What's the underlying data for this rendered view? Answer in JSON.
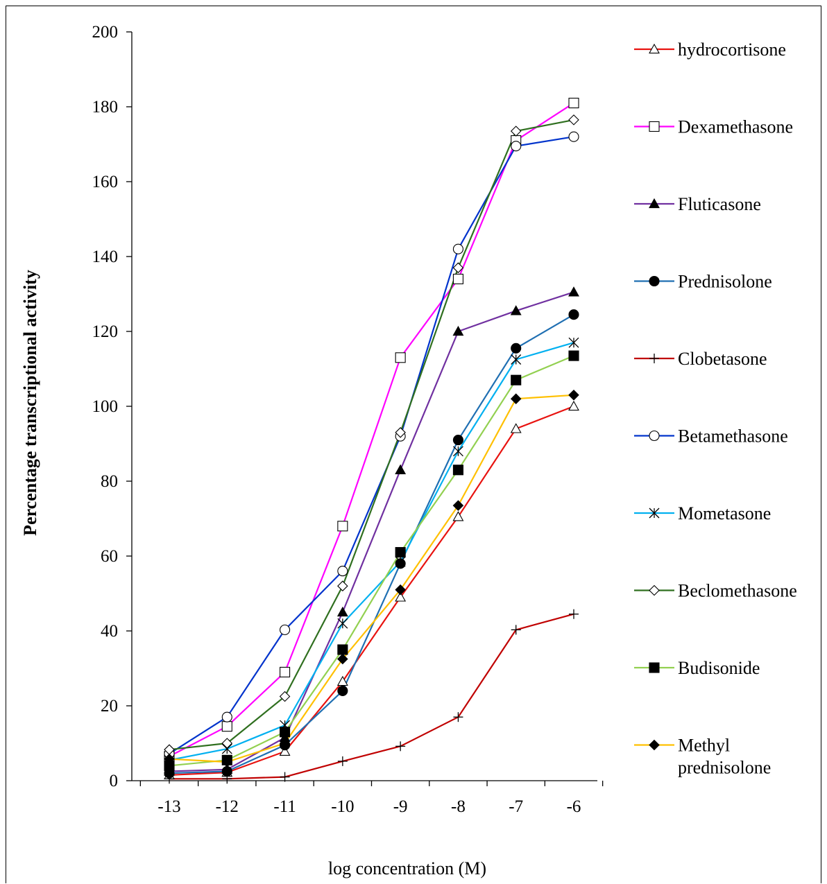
{
  "chart_data": {
    "type": "line",
    "title": "",
    "xlabel": "log concentration (M)",
    "ylabel": "Percentage transcriptional activity",
    "x": [
      -13,
      -12,
      -11,
      -10,
      -9,
      -8,
      -7,
      -6
    ],
    "x_tick_labels": [
      "-13",
      "-12",
      "-11",
      "-10",
      "-9",
      "-8",
      "-7",
      "-6"
    ],
    "ylim": [
      0,
      200
    ],
    "y_ticks": [
      0,
      20,
      40,
      60,
      80,
      100,
      120,
      140,
      160,
      180,
      200
    ],
    "grid": false,
    "legend_position": "right",
    "series": [
      {
        "name": "hydrocortisone",
        "color": "#e8120f",
        "marker": "triangle-open",
        "values": [
          1.5,
          2.2,
          7.8,
          26.5,
          49,
          70.5,
          94,
          100
        ]
      },
      {
        "name": "Dexamethasone",
        "color": "#ff00ff",
        "marker": "square-open",
        "values": [
          6.5,
          14.5,
          29,
          68,
          113,
          134,
          171,
          181
        ]
      },
      {
        "name": "Fluticasone",
        "color": "#7030a0",
        "marker": "triangle-filled",
        "values": [
          2.5,
          3,
          11.5,
          45,
          83,
          120,
          125.5,
          130.5
        ]
      },
      {
        "name": "Prednisolone",
        "color": "#1f6fb2",
        "marker": "circle-filled",
        "values": [
          2,
          2.5,
          9.5,
          24,
          58,
          91,
          115.5,
          124.5
        ]
      },
      {
        "name": "Clobetasone",
        "color": "#c00000",
        "marker": "plus",
        "values": [
          0.5,
          0.5,
          1,
          5.2,
          9.2,
          17,
          40.3,
          44.5
        ]
      },
      {
        "name": "Betamethasone",
        "color": "#0033cc",
        "marker": "circle-open",
        "values": [
          7.2,
          17,
          40.3,
          56,
          92,
          142,
          169.5,
          172
        ]
      },
      {
        "name": "Mometasone",
        "color": "#00b0f0",
        "marker": "star",
        "values": [
          5.5,
          8.5,
          14.8,
          42,
          58.5,
          88,
          112.5,
          117
        ]
      },
      {
        "name": "Beclomethasone",
        "color": "#2f6f1f",
        "marker": "diamond-open",
        "values": [
          8.3,
          10,
          22.5,
          52,
          93,
          137,
          173.5,
          176.5
        ]
      },
      {
        "name": "Budisonide",
        "color": "#92d050",
        "marker": "square-filled",
        "values": [
          4,
          5.5,
          13,
          35,
          61,
          83,
          107,
          113.5
        ]
      },
      {
        "name": "Methyl prednisolone",
        "label_lines": [
          "Methyl",
          "prednisolone"
        ],
        "color": "#ffc000",
        "marker": "diamond-filled",
        "values": [
          5.8,
          5,
          10,
          32.5,
          51,
          73.5,
          102,
          103
        ]
      }
    ]
  }
}
